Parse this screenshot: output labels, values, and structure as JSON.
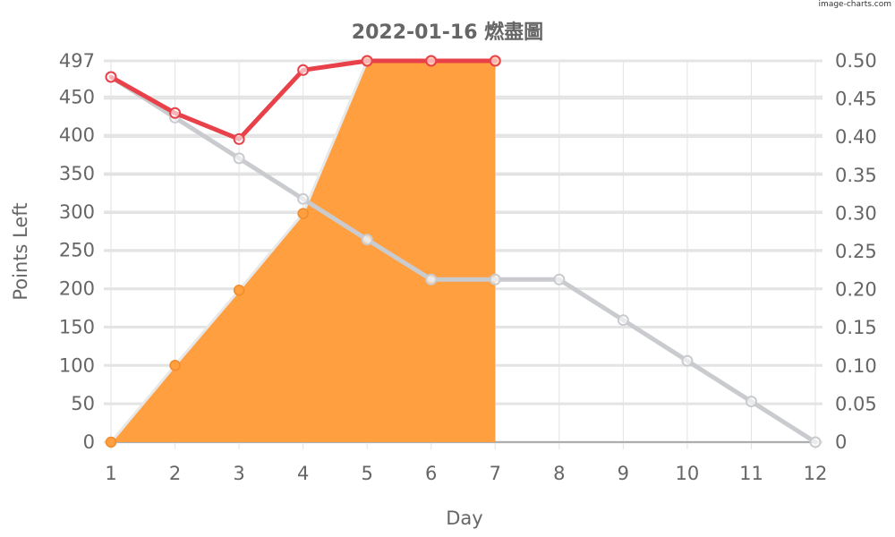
{
  "watermark": "image-charts.com",
  "chart_data": {
    "type": "line",
    "title": "2022-01-16 燃盡圖",
    "xlabel": "Day",
    "ylabel": "Points Left",
    "x": [
      1,
      2,
      3,
      4,
      5,
      6,
      7,
      8,
      9,
      10,
      11,
      12
    ],
    "ylim": [
      0,
      497
    ],
    "y_ticks": [
      0,
      50,
      100,
      150,
      200,
      250,
      300,
      350,
      400,
      450,
      497
    ],
    "y2lim": [
      0,
      0.5
    ],
    "y2_ticks": [
      "0",
      "0.05",
      "0.10",
      "0.15",
      "0.20",
      "0.25",
      "0.30",
      "0.35",
      "0.40",
      "0.45",
      "0.50"
    ],
    "grid": true,
    "series": [
      {
        "style": "area",
        "color": "#ff9f40",
        "x": [
          1,
          2,
          3,
          4,
          5,
          6,
          7
        ],
        "values": [
          0,
          100,
          198,
          298,
          497,
          497,
          497
        ]
      },
      {
        "style": "line",
        "color": "#c9cbcf",
        "x": [
          1,
          2,
          3,
          4,
          5,
          6,
          7,
          8,
          9,
          10,
          11,
          12
        ],
        "values": [
          476,
          423,
          370,
          317,
          264,
          212,
          212,
          212,
          159,
          106,
          53,
          0
        ]
      },
      {
        "style": "line",
        "color": "#e8414a",
        "x": [
          1,
          2,
          3,
          4,
          5,
          6,
          7
        ],
        "values": [
          476,
          429,
          395,
          485,
          497,
          497,
          497
        ]
      }
    ]
  }
}
